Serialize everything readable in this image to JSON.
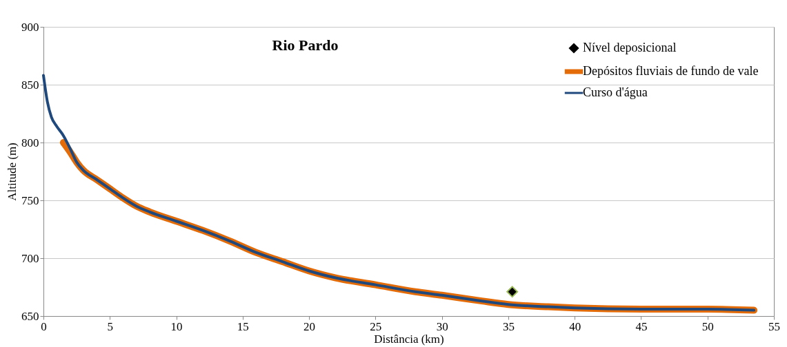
{
  "chart_data": {
    "type": "line",
    "title": "Rio Pardo",
    "xlabel": "Distância (km)",
    "ylabel": "Altitude (m)",
    "xlim": [
      0,
      55
    ],
    "xticks": [
      0,
      5,
      10,
      15,
      20,
      25,
      30,
      35,
      40,
      45,
      50,
      55
    ],
    "ylim": [
      650,
      900
    ],
    "yticks": [
      650,
      700,
      750,
      800,
      850,
      900
    ],
    "grid": "y",
    "legend": "top right",
    "series": [
      {
        "name": "Nível deposicional",
        "type": "scatter",
        "marker": "diamond",
        "color": "#000000",
        "x": [
          35.3
        ],
        "values": [
          671
        ]
      },
      {
        "name": "Depósitos fluviais de fundo de vale",
        "type": "line",
        "color": "#e36c09",
        "x": [
          1.5,
          2,
          2.5,
          3,
          4,
          5,
          6,
          7,
          8,
          10,
          12,
          14,
          16,
          18,
          20,
          22,
          25,
          28,
          30,
          33,
          35,
          38,
          40,
          45,
          50,
          53.5
        ],
        "values": [
          800,
          792,
          783,
          776,
          768,
          760,
          752,
          745,
          740,
          732,
          724,
          715,
          705,
          697,
          689,
          683,
          677,
          671,
          668,
          663,
          660,
          658,
          657,
          656,
          656,
          655
        ]
      },
      {
        "name": "Curso d'água",
        "type": "line",
        "color": "#1f497d",
        "x": [
          0,
          0.3,
          0.6,
          1,
          1.5,
          2,
          2.5,
          3,
          4,
          5,
          6,
          7,
          8,
          10,
          12,
          14,
          16,
          18,
          20,
          22,
          25,
          28,
          30,
          33,
          35,
          38,
          40,
          45,
          50,
          53.5
        ],
        "values": [
          858,
          835,
          822,
          814,
          806,
          795,
          783,
          776,
          768,
          760,
          752,
          745,
          740,
          732,
          724,
          715,
          705,
          697,
          689,
          683,
          677,
          671,
          668,
          663,
          660,
          658,
          657,
          656,
          656,
          655
        ]
      }
    ]
  }
}
